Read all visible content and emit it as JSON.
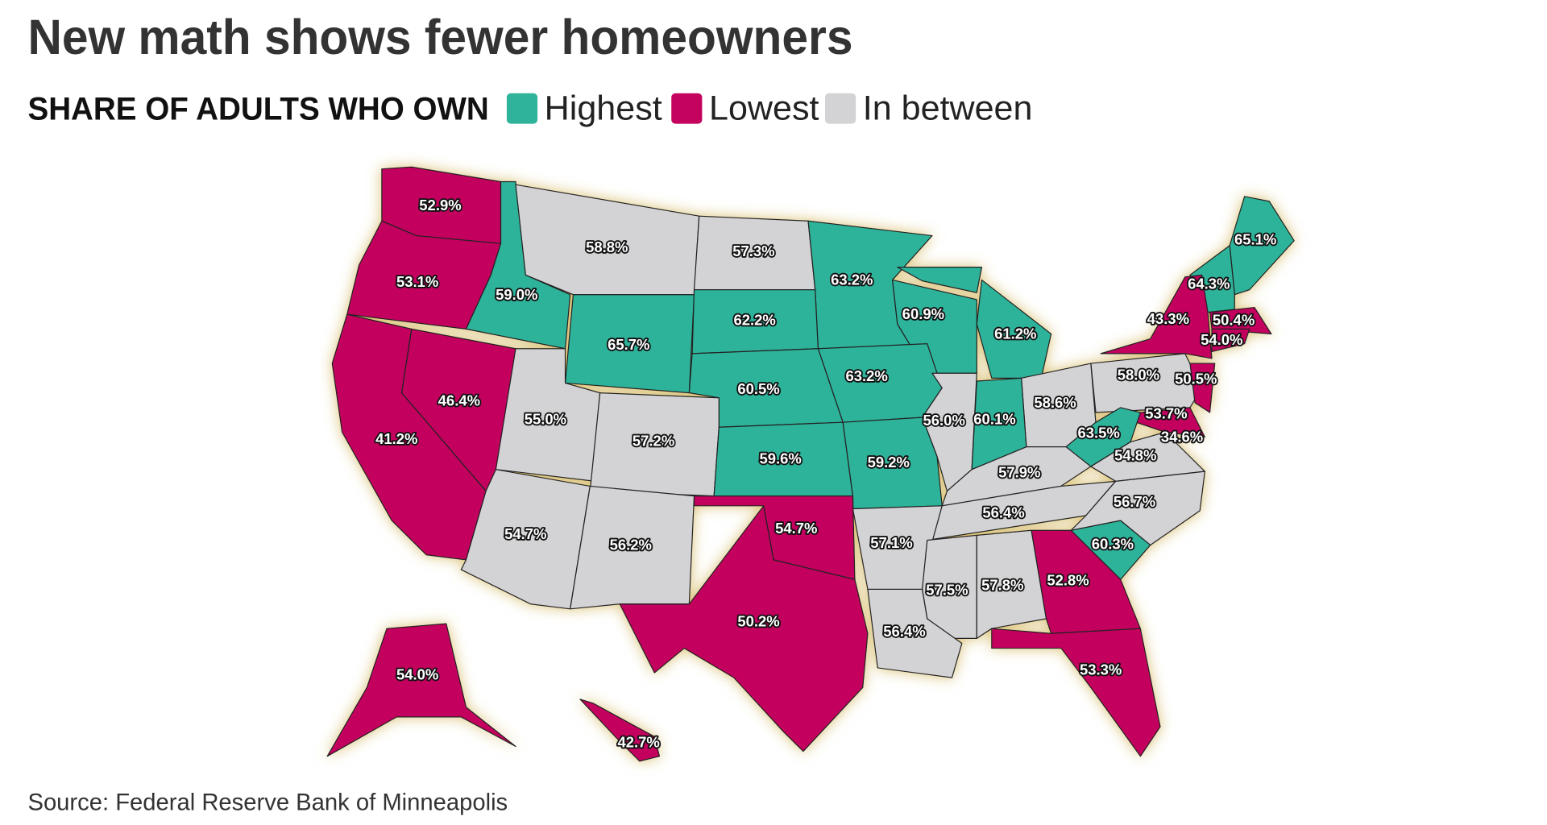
{
  "header": {
    "title": "New math shows fewer homeowners",
    "subtitle": "SHARE OF ADULTS WHO OWN"
  },
  "legend": [
    {
      "name": "Highest",
      "color": "#2fb39b"
    },
    {
      "name": "Lowest",
      "color": "#c4035f"
    },
    {
      "name": "In between",
      "color": "#d3d2d4"
    }
  ],
  "states": [
    {
      "label": "52.9%",
      "color": "#c4035f"
    },
    {
      "label": "53.1%",
      "color": "#c4035f"
    },
    {
      "label": "59.0%",
      "color": "#2fb39b"
    },
    {
      "label": "58.8%",
      "color": "#d3d2d4"
    },
    {
      "label": "57.3%",
      "color": "#d3d2d4"
    },
    {
      "label": "63.2%",
      "color": "#2fb39b"
    },
    {
      "label": "60.9%",
      "color": "#2fb39b"
    },
    {
      "label": "61.2%",
      "color": "#2fb39b"
    },
    {
      "label": "65.1%",
      "color": "#2fb39b"
    },
    {
      "label": "64.3%",
      "color": "#2fb39b"
    },
    {
      "label": "43.3%",
      "color": "#c4035f"
    },
    {
      "label": "50.4%",
      "color": "#c4035f"
    },
    {
      "label": "54.0%",
      "color": "#c4035f"
    },
    {
      "label": "65.7%",
      "color": "#2fb39b"
    },
    {
      "label": "62.2%",
      "color": "#2fb39b"
    },
    {
      "label": "63.2%",
      "color": "#2fb39b"
    },
    {
      "label": "58.0%",
      "color": "#d3d2d4"
    },
    {
      "label": "50.5%",
      "color": "#c4035f"
    },
    {
      "label": "46.4%",
      "color": "#c4035f"
    },
    {
      "label": "60.5%",
      "color": "#2fb39b"
    },
    {
      "label": "58.6%",
      "color": "#d3d2d4"
    },
    {
      "label": "55.0%",
      "color": "#d3d2d4"
    },
    {
      "label": "56.0%",
      "color": "#d3d2d4"
    },
    {
      "label": "60.1%",
      "color": "#2fb39b"
    },
    {
      "label": "53.7%",
      "color": "#c4035f"
    },
    {
      "label": "63.5%",
      "color": "#2fb39b"
    },
    {
      "label": "34.6%",
      "color": "#c4035f"
    },
    {
      "label": "41.2%",
      "color": "#c4035f"
    },
    {
      "label": "57.2%",
      "color": "#d3d2d4"
    },
    {
      "label": "54.8%",
      "color": "#d3d2d4"
    },
    {
      "label": "59.6%",
      "color": "#2fb39b"
    },
    {
      "label": "59.2%",
      "color": "#2fb39b"
    },
    {
      "label": "57.9%",
      "color": "#d3d2d4"
    },
    {
      "label": "56.4%",
      "color": "#d3d2d4"
    },
    {
      "label": "56.7%",
      "color": "#d3d2d4"
    },
    {
      "label": "54.7%",
      "color": "#c4035f"
    },
    {
      "label": "54.7%",
      "color": "#d3d2d4"
    },
    {
      "label": "57.1%",
      "color": "#d3d2d4"
    },
    {
      "label": "60.3%",
      "color": "#2fb39b"
    },
    {
      "label": "56.2%",
      "color": "#d3d2d4"
    },
    {
      "label": "52.8%",
      "color": "#c4035f"
    },
    {
      "label": "57.5%",
      "color": "#d3d2d4"
    },
    {
      "label": "57.8%",
      "color": "#d3d2d4"
    },
    {
      "label": "50.2%",
      "color": "#c4035f"
    },
    {
      "label": "56.4%",
      "color": "#d3d2d4"
    },
    {
      "label": "53.3%",
      "color": "#c4035f"
    },
    {
      "label": "54.0%",
      "color": "#c4035f"
    },
    {
      "label": "42.7%",
      "color": "#c4035f"
    }
  ],
  "footer": {
    "source": "Source: Federal Reserve Bank of Minneapolis"
  }
}
